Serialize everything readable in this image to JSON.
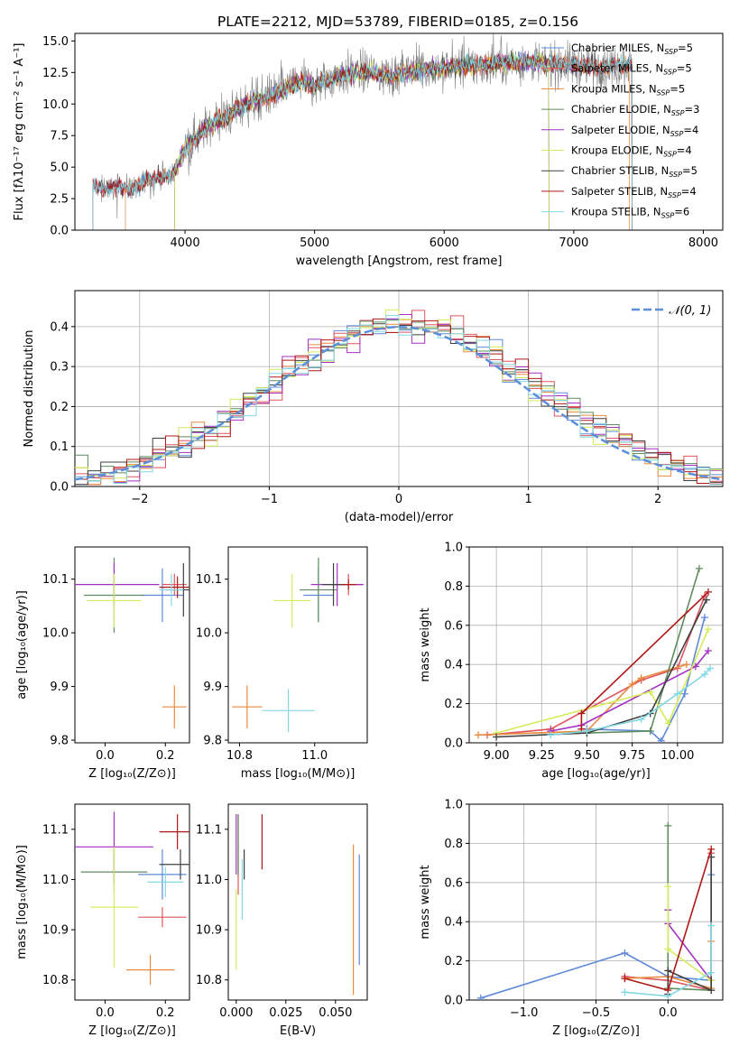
{
  "figure_title": "PLATE=2212, MJD=53789, FIBERID=0185, z=0.156",
  "colors": {
    "grid": "#b0b0b0",
    "spectrum_data": "#808080",
    "normal_curve": "#5b8fd9"
  },
  "series": [
    {
      "name": "Chabrier MILES",
      "nssp": "5",
      "color": "#5f89d8"
    },
    {
      "name": "Salpeter MILES",
      "nssp": "5",
      "color": "#e0555f"
    },
    {
      "name": "Kroupa MILES",
      "nssp": "5",
      "color": "#e88a3e"
    },
    {
      "name": "Chabrier ELODIE",
      "nssp": "3",
      "color": "#5e8c5e"
    },
    {
      "name": "Salpeter ELODIE",
      "nssp": "4",
      "color": "#a431c4"
    },
    {
      "name": "Kroupa ELODIE",
      "nssp": "4",
      "color": "#d3ec5a"
    },
    {
      "name": "Chabrier STELIB",
      "nssp": "5",
      "color": "#404040"
    },
    {
      "name": "Salpeter STELIB",
      "nssp": "4",
      "color": "#b01818"
    },
    {
      "name": "Kroupa STELIB",
      "nssp": "6",
      "color": "#82d8e2"
    }
  ],
  "chart_data": [
    {
      "id": "spectrum",
      "type": "line",
      "xlabel": "wavelength [Angstrom, rest frame]",
      "ylabel": "Flux [fλ10⁻¹⁷ erg cm⁻² s⁻¹ A⁻¹]",
      "xlim": [
        3150,
        8150
      ],
      "ylim": [
        0,
        15.6
      ],
      "xticks": [
        4000,
        5000,
        6000,
        7000,
        8000
      ],
      "yticks": [
        0.0,
        2.5,
        5.0,
        7.5,
        10.0,
        12.5,
        15.0
      ],
      "ytick_labels": [
        "0.0",
        "2.5",
        "5.0",
        "7.5",
        "10.0",
        "12.5",
        "15.0"
      ],
      "legend_placement": "right",
      "continuum": {
        "x": [
          3300,
          3400,
          3500,
          3600,
          3700,
          3800,
          3900,
          4000,
          4100,
          4200,
          4300,
          4400,
          4500,
          4600,
          4700,
          4800,
          4900,
          5000,
          5200,
          5400,
          5600,
          5800,
          6000,
          6200,
          6400,
          6600,
          6800,
          7000,
          7200,
          7400
        ],
        "y": [
          3.5,
          3.3,
          3.5,
          3.3,
          4.0,
          4.2,
          4.3,
          6.5,
          7.5,
          8.4,
          8.8,
          9.6,
          10.1,
          10.5,
          10.8,
          11.4,
          11.8,
          11.4,
          12.3,
          12.6,
          12.2,
          12.7,
          12.9,
          13.0,
          13.2,
          13.4,
          13.2,
          13.1,
          12.9,
          13.1
        ]
      }
    },
    {
      "id": "residuals",
      "type": "histogram",
      "xlabel": "(data-model)/error",
      "ylabel": "Normed distribution",
      "xlim": [
        -2.5,
        2.5
      ],
      "ylim": [
        0,
        0.49
      ],
      "xticks": [
        -2,
        -1,
        0,
        1,
        2
      ],
      "xtick_labels": [
        "−2",
        "−1",
        "0",
        "1",
        "2"
      ],
      "yticks": [
        0.0,
        0.1,
        0.2,
        0.3,
        0.4
      ],
      "ytick_labels": [
        "0.0",
        "0.1",
        "0.2",
        "0.3",
        "0.4"
      ],
      "grid": true,
      "bin_width": 0.1,
      "legend_label": "𝒩(0, 1)",
      "legend_placement": "top-right"
    },
    {
      "id": "age_vs_Z",
      "type": "errorbar",
      "xlabel": "Z [log₁₀(Z/Z⊙)]",
      "ylabel": "age  [log₁₀(age/yr)]",
      "xlim": [
        -0.1,
        0.28
      ],
      "ylim": [
        9.795,
        10.16
      ],
      "xticks": [
        0.0,
        0.2
      ],
      "xtick_labels": [
        "0.0",
        "0.2"
      ],
      "yticks": [
        9.8,
        9.9,
        10.0,
        10.1
      ],
      "ytick_labels": [
        "9.8",
        "9.9",
        "10.0",
        "10.1"
      ],
      "points": [
        {
          "s": 0,
          "x": 0.19,
          "xe": 0.07,
          "y": 10.07,
          "ye": 0.05
        },
        {
          "s": 1,
          "x": 0.23,
          "xe": 0.04,
          "y": 10.09,
          "ye": 0.02
        },
        {
          "s": 2,
          "x": 0.23,
          "xe": 0.04,
          "y": 9.862,
          "ye": 0.04
        },
        {
          "s": 3,
          "x": 0.03,
          "xe": 0.1,
          "y": 10.07,
          "ye": 0.07
        },
        {
          "s": 4,
          "x": 0.03,
          "xe": 0.15,
          "y": 10.09,
          "ye": 0.04
        },
        {
          "s": 5,
          "x": 0.03,
          "xe": 0.09,
          "y": 10.06,
          "ye": 0.05
        },
        {
          "s": 6,
          "x": 0.26,
          "xe": 0.06,
          "y": 10.08,
          "ye": 0.05
        },
        {
          "s": 7,
          "x": 0.24,
          "xe": 0.06,
          "y": 10.085,
          "ye": 0.02
        },
        {
          "s": 8,
          "x": 0.22,
          "xe": 0.04,
          "y": 10.08,
          "ye": 0.03
        }
      ]
    },
    {
      "id": "age_vs_mass",
      "type": "errorbar",
      "xlabel": "mass [log₁₀(M/M⊙)]",
      "ylabel": "",
      "xlim": [
        10.77,
        11.14
      ],
      "ylim": [
        9.795,
        10.16
      ],
      "xticks": [
        10.8,
        11.0
      ],
      "xtick_labels": [
        "10.8",
        "11.0"
      ],
      "yticks": [
        9.8,
        9.9,
        10.0,
        10.1
      ],
      "ytick_labels": [
        "9.8",
        "9.9",
        "10.0",
        "10.1"
      ],
      "points": [
        {
          "s": 0,
          "x": 11.01,
          "xe": 0.04,
          "y": 10.07,
          "ye": 0.05
        },
        {
          "s": 1,
          "x": 11.09,
          "xe": 0.04,
          "y": 10.09,
          "ye": 0.02
        },
        {
          "s": 2,
          "x": 10.82,
          "xe": 0.04,
          "y": 9.862,
          "ye": 0.04
        },
        {
          "s": 3,
          "x": 11.01,
          "xe": 0.05,
          "y": 10.08,
          "ye": 0.06
        },
        {
          "s": 4,
          "x": 11.06,
          "xe": 0.07,
          "y": 10.09,
          "ye": 0.04
        },
        {
          "s": 5,
          "x": 10.94,
          "xe": 0.05,
          "y": 10.06,
          "ye": 0.05
        },
        {
          "s": 6,
          "x": 11.05,
          "xe": 0.03,
          "y": 10.09,
          "ye": 0.04
        },
        {
          "s": 7,
          "x": 11.09,
          "xe": 0.02,
          "y": 10.09,
          "ye": 0.01
        },
        {
          "s": 8,
          "x": 10.93,
          "xe": 0.07,
          "y": 9.855,
          "ye": 0.04
        }
      ]
    },
    {
      "id": "weights_vs_age",
      "type": "line",
      "xlabel": "age  [log₁₀(age/yr)]",
      "ylabel": "mass weight",
      "xlim": [
        8.85,
        10.25
      ],
      "ylim": [
        0,
        1
      ],
      "xticks": [
        9.0,
        9.25,
        9.5,
        9.75,
        10.0
      ],
      "xtick_labels": [
        "9.00",
        "9.25",
        "9.50",
        "9.75",
        "10.00"
      ],
      "yticks": [
        0.0,
        0.2,
        0.4,
        0.6,
        0.8,
        1.0
      ],
      "ytick_labels": [
        "0.0",
        "0.2",
        "0.4",
        "0.6",
        "0.8",
        "1.0"
      ],
      "grid": true,
      "lines": [
        {
          "s": 0,
          "x": [
            9.5,
            9.85,
            9.91,
            10.04,
            10.15
          ],
          "y": [
            0.07,
            0.06,
            0.01,
            0.25,
            0.64
          ]
        },
        {
          "s": 1,
          "x": [
            8.95,
            9.3,
            9.8,
            10.0,
            10.15
          ],
          "y": [
            0.04,
            0.07,
            0.32,
            0.38,
            0.75
          ]
        },
        {
          "s": 2,
          "x": [
            8.9,
            9.5,
            9.75,
            9.8,
            10.05
          ],
          "y": [
            0.04,
            0.06,
            0.3,
            0.33,
            0.4
          ]
        },
        {
          "s": 3,
          "x": [
            9.5,
            9.85,
            10.12
          ],
          "y": [
            0.05,
            0.06,
            0.89
          ]
        },
        {
          "s": 4,
          "x": [
            9.3,
            9.47,
            10.1,
            10.17
          ],
          "y": [
            0.06,
            0.09,
            0.39,
            0.47
          ]
        },
        {
          "s": 5,
          "x": [
            9.0,
            9.85,
            9.95,
            10.17
          ],
          "y": [
            0.05,
            0.26,
            0.1,
            0.58
          ]
        },
        {
          "s": 6,
          "x": [
            9.0,
            9.5,
            9.85,
            10.16
          ],
          "y": [
            0.03,
            0.05,
            0.15,
            0.73
          ]
        },
        {
          "s": 7,
          "x": [
            9.47,
            9.47,
            10.17
          ],
          "y": [
            0.07,
            0.15,
            0.77
          ]
        },
        {
          "s": 8,
          "x": [
            9.3,
            9.5,
            9.8,
            10.0,
            10.15,
            10.18
          ],
          "y": [
            0.04,
            0.06,
            0.12,
            0.25,
            0.35,
            0.38
          ]
        }
      ]
    },
    {
      "id": "mass_vs_Z",
      "type": "errorbar",
      "xlabel": "Z [log₁₀(Z/Z⊙)]",
      "ylabel": "mass [log₁₀(M/M⊙)]",
      "xlim": [
        -0.1,
        0.28
      ],
      "ylim": [
        10.76,
        11.15
      ],
      "xticks": [
        0.0,
        0.2
      ],
      "xtick_labels": [
        "0.0",
        "0.2"
      ],
      "yticks": [
        10.8,
        10.9,
        11.0,
        11.1
      ],
      "ytick_labels": [
        "10.8",
        "10.9",
        "11.0",
        "11.1"
      ],
      "points": [
        {
          "s": 0,
          "x": 0.19,
          "xe": 0.08,
          "y": 11.01,
          "ye": 0.05
        },
        {
          "s": 1,
          "x": 0.19,
          "xe": 0.08,
          "y": 10.925,
          "ye": 0.02
        },
        {
          "s": 2,
          "x": 0.15,
          "xe": 0.08,
          "y": 10.82,
          "ye": 0.03
        },
        {
          "s": 3,
          "x": 0.03,
          "xe": 0.11,
          "y": 11.015,
          "ye": 0.04
        },
        {
          "s": 4,
          "x": 0.03,
          "xe": 0.13,
          "y": 11.065,
          "ye": 0.07
        },
        {
          "s": 5,
          "x": 0.03,
          "xe": 0.08,
          "y": 10.945,
          "ye": 0.12
        },
        {
          "s": 6,
          "x": 0.25,
          "xe": 0.07,
          "y": 11.03,
          "ye": 0.03
        },
        {
          "s": 7,
          "x": 0.24,
          "xe": 0.06,
          "y": 11.095,
          "ye": 0.035
        },
        {
          "s": 8,
          "x": 0.2,
          "xe": 0.06,
          "y": 10.995,
          "ye": 0.03
        }
      ]
    },
    {
      "id": "mass_vs_ebv",
      "type": "errorbar",
      "xlabel": "E(B-V)",
      "ylabel": "",
      "xlim": [
        -0.004,
        0.066
      ],
      "ylim": [
        10.76,
        11.15
      ],
      "xticks": [
        0.0,
        0.025,
        0.05
      ],
      "xtick_labels": [
        "0.000",
        "0.025",
        "0.050"
      ],
      "yticks": [
        10.8,
        10.9,
        11.0,
        11.1
      ],
      "ytick_labels": [
        "10.8",
        "10.9",
        "11.0",
        "11.1"
      ],
      "points": [
        {
          "s": 0,
          "x": 0.062,
          "xe": 0,
          "y": 10.94,
          "ye": 0.11
        },
        {
          "s": 1,
          "x": 0.001,
          "xe": 0,
          "y": 11.05,
          "ye": 0.08
        },
        {
          "s": 2,
          "x": 0.059,
          "xe": 0,
          "y": 10.92,
          "ye": 0.15
        },
        {
          "s": 3,
          "x": 0.001,
          "xe": 0,
          "y": 11.07,
          "ye": 0.06
        },
        {
          "s": 4,
          "x": 0.0,
          "xe": 0,
          "y": 11.07,
          "ye": 0.06
        },
        {
          "s": 5,
          "x": 0.0,
          "xe": 0,
          "y": 10.9,
          "ye": 0.08
        },
        {
          "s": 6,
          "x": 0.004,
          "xe": 0,
          "y": 11.03,
          "ye": 0.03
        },
        {
          "s": 7,
          "x": 0.013,
          "xe": 0,
          "y": 11.075,
          "ye": 0.055
        },
        {
          "s": 8,
          "x": 0.003,
          "xe": 0,
          "y": 10.98,
          "ye": 0.06
        }
      ]
    },
    {
      "id": "weights_vs_Z",
      "type": "line",
      "xlabel": "Z [log₁₀(Z/Z⊙)]",
      "ylabel": "mass weight",
      "xlim": [
        -1.38,
        0.38
      ],
      "ylim": [
        0,
        1
      ],
      "xticks": [
        -1.0,
        -0.5,
        0.0
      ],
      "xtick_labels": [
        "−1.0",
        "−0.5",
        "0.0"
      ],
      "yticks": [
        0.0,
        0.2,
        0.4,
        0.6,
        0.8,
        1.0
      ],
      "ytick_labels": [
        "0.0",
        "0.2",
        "0.4",
        "0.6",
        "0.8",
        "1.0"
      ],
      "grid": true,
      "lines": [
        {
          "s": 0,
          "x": [
            -1.3,
            -0.3,
            0.0,
            0.3,
            0.3
          ],
          "y": [
            0.01,
            0.24,
            0.12,
            0.1,
            0.64
          ]
        },
        {
          "s": 1,
          "x": [
            -0.3,
            0.0,
            0.3,
            0.3
          ],
          "y": [
            0.12,
            0.1,
            0.05,
            0.75
          ]
        },
        {
          "s": 2,
          "x": [
            -0.3,
            0.0,
            0.3,
            0.3
          ],
          "y": [
            0.11,
            0.12,
            0.06,
            0.3
          ]
        },
        {
          "s": 3,
          "x": [
            0.0,
            0.0,
            0.3
          ],
          "y": [
            0.89,
            0.06,
            0.05
          ]
        },
        {
          "s": 4,
          "x": [
            0.0,
            0.0,
            0.3
          ],
          "y": [
            0.46,
            0.39,
            0.1
          ]
        },
        {
          "s": 5,
          "x": [
            0.0,
            0.0,
            0.3,
            0.3
          ],
          "y": [
            0.58,
            0.26,
            0.1,
            0.05
          ]
        },
        {
          "s": 6,
          "x": [
            0.0,
            0.0,
            0.3,
            0.3
          ],
          "y": [
            0.03,
            0.15,
            0.05,
            0.73
          ]
        },
        {
          "s": 7,
          "x": [
            -0.3,
            0.0,
            0.3
          ],
          "y": [
            0.11,
            0.05,
            0.77
          ]
        },
        {
          "s": 8,
          "x": [
            -0.3,
            0.0,
            0.3,
            0.3
          ],
          "y": [
            0.04,
            0.02,
            0.14,
            0.38
          ]
        }
      ]
    }
  ]
}
